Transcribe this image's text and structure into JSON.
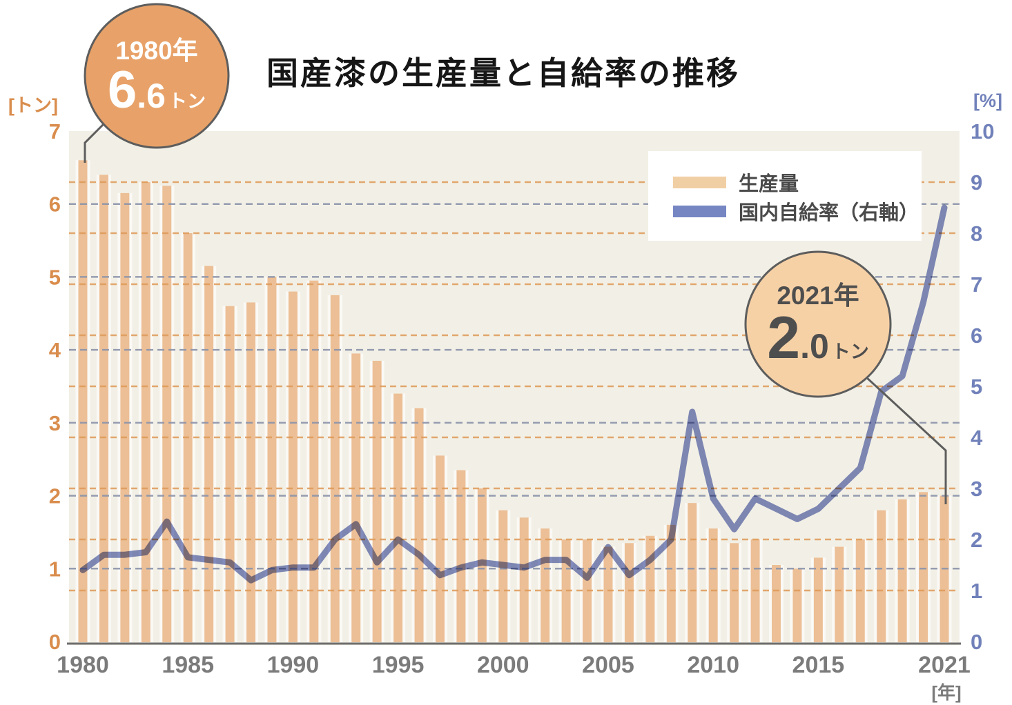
{
  "title": "国産漆の生産量と自給率の推移",
  "left_axis": {
    "unit": "[トン]",
    "ticks": [
      "0",
      "1",
      "2",
      "3",
      "4",
      "5",
      "6",
      "7"
    ],
    "color": "#d98d4d",
    "range": [
      0,
      7
    ]
  },
  "right_axis": {
    "unit": "[%]",
    "ticks": [
      "0",
      "1",
      "2",
      "3",
      "4",
      "5",
      "6",
      "7",
      "8",
      "9",
      "10"
    ],
    "color": "#7181ba",
    "range": [
      0,
      10
    ]
  },
  "x_axis": {
    "unit": "[年]",
    "labels": [
      "1980",
      "1985",
      "1990",
      "1995",
      "2000",
      "2005",
      "2010",
      "2015",
      "2021"
    ],
    "label_years": [
      1980,
      1985,
      1990,
      1995,
      2000,
      2005,
      2010,
      2015,
      2021
    ],
    "color": "#7b7b7b"
  },
  "legend": {
    "items": [
      {
        "label": "生産量",
        "swatch_color": "#f1cfa4",
        "type": "bar"
      },
      {
        "label": "国内自給率（右軸）",
        "swatch_color": "#7586c3",
        "type": "line"
      }
    ]
  },
  "callouts": [
    {
      "id": "1980",
      "year": "1980年",
      "value_int": "6",
      "value_dec": ".6",
      "unit": "トン"
    },
    {
      "id": "2021",
      "year": "2021年",
      "value_int": "2",
      "value_dec": ".0",
      "unit": "トン"
    }
  ],
  "colors": {
    "bar": "#ecbf96",
    "bar_backing": "#fbfaf6",
    "line": "#7d88c1",
    "plot_bg": "#f2f0e6",
    "grid_tons": "#8c94ab",
    "grid_percent": "#df9a58",
    "axis_line": "#6e6e6e",
    "title_text": "#161616",
    "legend_text": "#4a4a4a",
    "callout_1980_fill": "#e8a269",
    "callout_2021_fill": "#f7d1a6",
    "callout_border": "#5d5d5d",
    "leader_line": "#5d5d5d"
  },
  "chart_data": {
    "type": "bar+line",
    "title": "国産漆の生産量と自給率の推移",
    "x": [
      1980,
      1981,
      1982,
      1983,
      1984,
      1985,
      1986,
      1987,
      1988,
      1989,
      1990,
      1991,
      1992,
      1993,
      1994,
      1995,
      1996,
      1997,
      1998,
      1999,
      2000,
      2001,
      2002,
      2003,
      2004,
      2005,
      2006,
      2007,
      2008,
      2009,
      2010,
      2011,
      2012,
      2013,
      2014,
      2015,
      2016,
      2017,
      2018,
      2019,
      2020,
      2021
    ],
    "series": [
      {
        "name": "生産量",
        "type": "bar",
        "unit": "トン",
        "axis": "left",
        "ylim": [
          0,
          7
        ],
        "values": [
          6.6,
          6.4,
          6.15,
          6.3,
          6.25,
          5.6,
          5.15,
          4.6,
          4.65,
          5.0,
          4.8,
          4.95,
          4.75,
          3.95,
          3.85,
          3.4,
          3.2,
          2.55,
          2.35,
          2.1,
          1.8,
          1.7,
          1.55,
          1.4,
          1.4,
          1.3,
          1.35,
          1.45,
          1.6,
          1.9,
          1.55,
          1.35,
          1.4,
          1.05,
          1.0,
          1.15,
          1.3,
          1.4,
          1.8,
          1.95,
          2.05,
          2.0
        ]
      },
      {
        "name": "国内自給率（右軸）",
        "type": "line",
        "unit": "%",
        "axis": "right",
        "ylim": [
          0,
          10
        ],
        "values": [
          1.4,
          1.7,
          1.7,
          1.75,
          2.35,
          1.65,
          1.6,
          1.55,
          1.2,
          1.4,
          1.45,
          1.45,
          2.0,
          2.3,
          1.55,
          2.0,
          1.7,
          1.3,
          1.45,
          1.55,
          1.5,
          1.45,
          1.6,
          1.6,
          1.25,
          1.85,
          1.3,
          1.6,
          2.0,
          4.5,
          2.8,
          2.2,
          2.8,
          2.6,
          2.4,
          2.6,
          3.0,
          3.4,
          4.9,
          5.2,
          6.65,
          8.5
        ]
      }
    ],
    "annotations": [
      "1980年 6.6トン",
      "2021年 2.0トン"
    ],
    "grid": "dashed horizontal lines for both axes",
    "legend_position": "top-right"
  }
}
